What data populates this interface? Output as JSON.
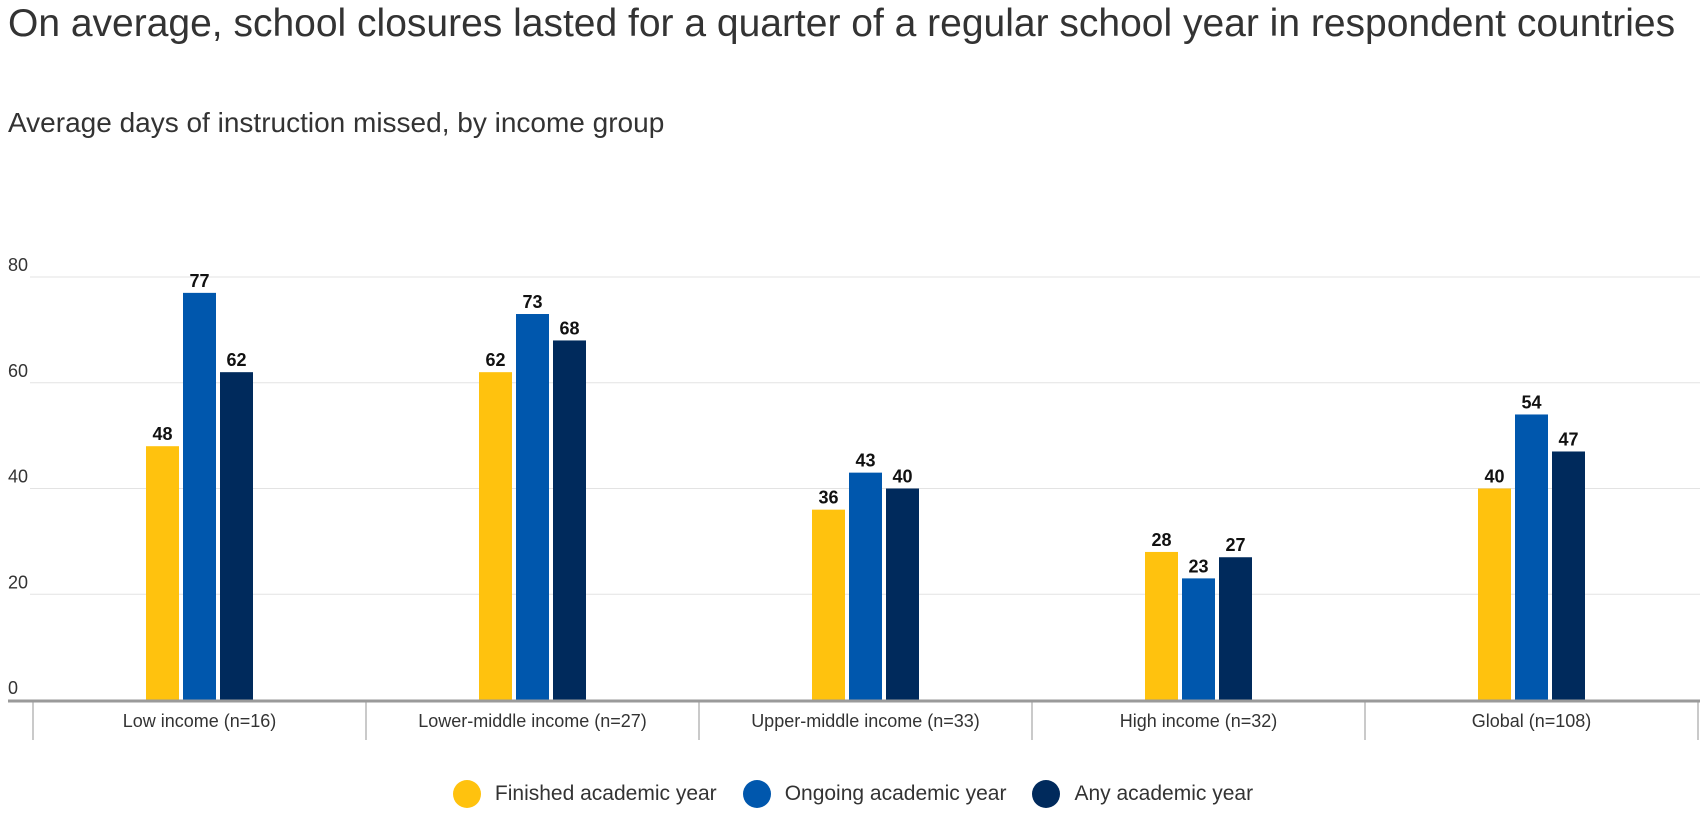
{
  "chart_data": {
    "type": "bar",
    "title": "On average, school closures lasted for a quarter of a regular school year in respondent countries",
    "subtitle": "Average days of instruction missed, by income group",
    "categories": [
      "Low income (n=16)",
      "Lower-middle income (n=27)",
      "Upper-middle income (n=33)",
      "High income (n=32)",
      "Global (n=108)"
    ],
    "series": [
      {
        "name": "Finished academic year",
        "color": "#FFC20E",
        "values": [
          48,
          62,
          36,
          28,
          40
        ]
      },
      {
        "name": "Ongoing academic year",
        "color": "#0057AD",
        "values": [
          77,
          73,
          43,
          23,
          54
        ]
      },
      {
        "name": "Any academic year",
        "color": "#002A5C",
        "values": [
          62,
          68,
          40,
          27,
          47
        ]
      }
    ],
    "ylim": [
      0,
      80
    ],
    "yticks": [
      0,
      20,
      40,
      60,
      80
    ],
    "grid": true,
    "legend_position": "bottom"
  }
}
